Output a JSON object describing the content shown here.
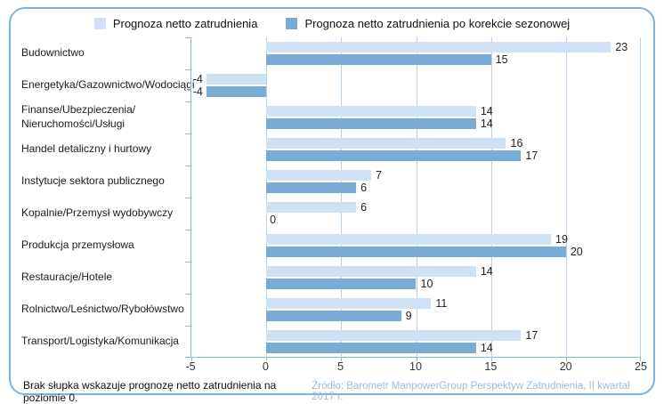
{
  "chart_data": {
    "type": "bar",
    "orientation": "horizontal",
    "title": "",
    "categories": [
      "Budownictwo",
      "Energetyka/Gazownictwo/Wodociągi",
      "Finanse/Ubezpieczenia/\nNieruchomości/Usługi",
      "Handel detaliczny i hurtowy",
      "Instytucje sektora publicznego",
      "Kopalnie/Przemysł wydobywczy",
      "Produkcja przemysłowa",
      "Restauracje/Hotele",
      "Rolnictwo/Leśnictwo/Rybołówstwo",
      "Transport/Logistyka/Komunikacja"
    ],
    "series": [
      {
        "name": "Prognoza netto zatrudnienia",
        "color": "#cfe1f3",
        "values": [
          23,
          -4,
          14,
          16,
          7,
          6,
          19,
          14,
          11,
          17
        ]
      },
      {
        "name": "Prognoza netto zatrudnienia po korekcie sezonowej",
        "color": "#79abd7",
        "values": [
          15,
          -4,
          14,
          17,
          6,
          0,
          20,
          10,
          9,
          14
        ]
      }
    ],
    "xlim": [
      -5,
      25
    ],
    "xticks": [
      -5,
      0,
      5,
      10,
      15,
      20,
      25
    ],
    "gridlines": [
      0,
      5,
      10,
      15,
      20,
      25
    ],
    "legend_position": "top-center",
    "grid": "vertical"
  },
  "footer": {
    "note": "Brak słupka wskazuje prognozę netto zatrudnienia na poziomie 0.",
    "source": "Źródło: Barometr ManpowerGroup Perspektyw Zatrudnienia, II kwartał 2017 r."
  },
  "colors": {
    "card_border": "#7fb2da",
    "gridline": "#b7d2ec",
    "axis": "#8fb8de",
    "light_bar": "#cfe1f3",
    "dark_bar": "#79abd7",
    "source_text": "#9cbcdc",
    "value_text": "#222222"
  }
}
